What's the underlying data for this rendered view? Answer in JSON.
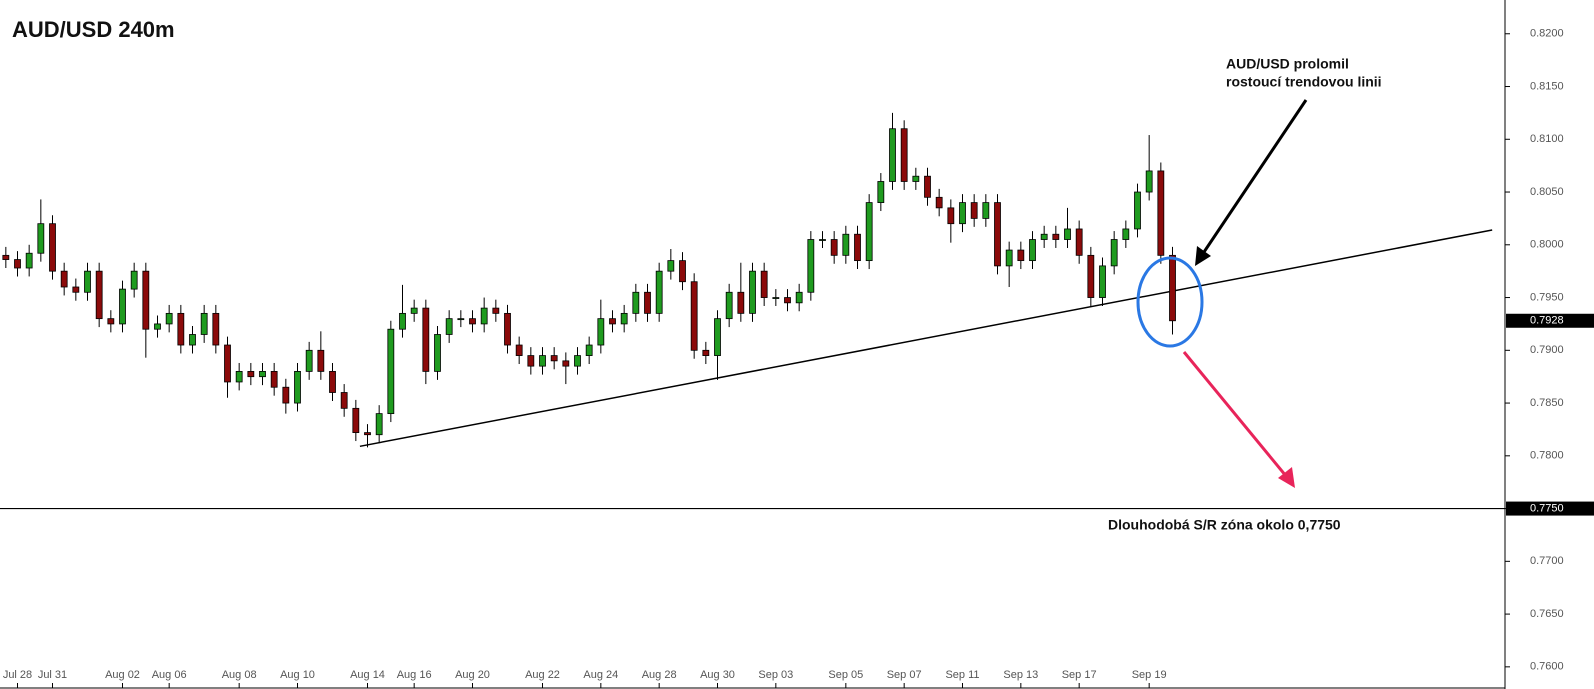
{
  "chart_data": {
    "type": "candlestick",
    "title": "AUD/USD 240m",
    "up_color": "#1f9b1f",
    "down_color": "#8b0a0a",
    "xlim": [
      -0.5,
      128.5
    ],
    "ylim": [
      0.7579,
      0.8232
    ],
    "xticks": [
      {
        "value": 1,
        "label": "Jul 28"
      },
      {
        "value": 4,
        "label": "Jul 31"
      },
      {
        "value": 10,
        "label": "Aug 02"
      },
      {
        "value": 14,
        "label": "Aug 06"
      },
      {
        "value": 20,
        "label": "Aug 08"
      },
      {
        "value": 25,
        "label": "Aug 10"
      },
      {
        "value": 31,
        "label": "Aug 14"
      },
      {
        "value": 35,
        "label": "Aug 16"
      },
      {
        "value": 40,
        "label": "Aug 20"
      },
      {
        "value": 46,
        "label": "Aug 22"
      },
      {
        "value": 51,
        "label": "Aug 24"
      },
      {
        "value": 56,
        "label": "Aug 28"
      },
      {
        "value": 61,
        "label": "Aug 30"
      },
      {
        "value": 66,
        "label": "Sep 03"
      },
      {
        "value": 72,
        "label": "Sep 05"
      },
      {
        "value": 77,
        "label": "Sep 07"
      },
      {
        "value": 82,
        "label": "Sep 11"
      },
      {
        "value": 87,
        "label": "Sep 13"
      },
      {
        "value": 92,
        "label": "Sep 17"
      },
      {
        "value": 98,
        "label": "Sep 19"
      }
    ],
    "yticks": [
      {
        "value": 0.82,
        "label": "0.8200"
      },
      {
        "value": 0.815,
        "label": "0.8150"
      },
      {
        "value": 0.81,
        "label": "0.8100"
      },
      {
        "value": 0.805,
        "label": "0.8050"
      },
      {
        "value": 0.8,
        "label": "0.8000"
      },
      {
        "value": 0.795,
        "label": "0.7950"
      },
      {
        "value": 0.79,
        "label": "0.7900"
      },
      {
        "value": 0.785,
        "label": "0.7850"
      },
      {
        "value": 0.78,
        "label": "0.7800"
      },
      {
        "value": 0.775,
        "label": "0.7750"
      },
      {
        "value": 0.77,
        "label": "0.7700"
      },
      {
        "value": 0.765,
        "label": "0.7650"
      },
      {
        "value": 0.76,
        "label": "0.7600"
      }
    ],
    "open": [
      0.799,
      0.7986,
      0.7978,
      0.7992,
      0.802,
      0.7975,
      0.796,
      0.7955,
      0.7975,
      0.793,
      0.7925,
      0.7958,
      0.7975,
      0.792,
      0.7925,
      0.7935,
      0.7905,
      0.7915,
      0.7935,
      0.7905,
      0.787,
      0.788,
      0.7875,
      0.788,
      0.7865,
      0.785,
      0.788,
      0.79,
      0.788,
      0.786,
      0.7845,
      0.7822,
      0.782,
      0.784,
      0.792,
      0.7935,
      0.794,
      0.788,
      0.7915,
      0.793,
      0.793,
      0.7925,
      0.794,
      0.7935,
      0.7905,
      0.7895,
      0.7885,
      0.7895,
      0.789,
      0.7885,
      0.7895,
      0.7905,
      0.793,
      0.7925,
      0.7935,
      0.7955,
      0.7935,
      0.7975,
      0.7985,
      0.7965,
      0.79,
      0.7895,
      0.793,
      0.7955,
      0.7935,
      0.7975,
      0.795,
      0.795,
      0.7945,
      0.7955,
      0.8005,
      0.8005,
      0.799,
      0.801,
      0.7985,
      0.804,
      0.806,
      0.811,
      0.806,
      0.8065,
      0.8045,
      0.8035,
      0.802,
      0.804,
      0.8025,
      0.804,
      0.798,
      0.7995,
      0.7985,
      0.8005,
      0.801,
      0.8005,
      0.8015,
      0.799,
      0.795,
      0.798,
      0.8005,
      0.8015,
      0.805,
      0.807,
      0.799
    ],
    "high": [
      0.7998,
      0.7994,
      0.8,
      0.8043,
      0.8028,
      0.7983,
      0.7968,
      0.7983,
      0.7983,
      0.7938,
      0.7966,
      0.7983,
      0.7983,
      0.7933,
      0.7943,
      0.7943,
      0.7923,
      0.7943,
      0.7943,
      0.7913,
      0.7888,
      0.7888,
      0.7888,
      0.7888,
      0.7873,
      0.7888,
      0.7908,
      0.7918,
      0.7888,
      0.7868,
      0.7853,
      0.783,
      0.7848,
      0.7928,
      0.7962,
      0.7948,
      0.7948,
      0.7923,
      0.7938,
      0.7938,
      0.7938,
      0.795,
      0.7948,
      0.7943,
      0.7913,
      0.7903,
      0.7903,
      0.7903,
      0.7898,
      0.7903,
      0.7913,
      0.7948,
      0.7938,
      0.7943,
      0.7963,
      0.7963,
      0.7983,
      0.7996,
      0.7993,
      0.7973,
      0.7908,
      0.7938,
      0.7963,
      0.7983,
      0.7983,
      0.7983,
      0.7958,
      0.7958,
      0.7963,
      0.8013,
      0.8013,
      0.8013,
      0.8018,
      0.8018,
      0.8048,
      0.8068,
      0.8125,
      0.8118,
      0.8073,
      0.8073,
      0.8053,
      0.8043,
      0.8048,
      0.8048,
      0.8048,
      0.8048,
      0.8003,
      0.8003,
      0.8013,
      0.8018,
      0.8018,
      0.8035,
      0.8023,
      0.7998,
      0.7988,
      0.8013,
      0.8023,
      0.8058,
      0.8104,
      0.8078,
      0.7998
    ],
    "low": [
      0.7978,
      0.797,
      0.797,
      0.7984,
      0.7967,
      0.7952,
      0.7947,
      0.7947,
      0.7922,
      0.7917,
      0.7917,
      0.795,
      0.7893,
      0.7912,
      0.7917,
      0.7897,
      0.7897,
      0.7907,
      0.7897,
      0.7855,
      0.7862,
      0.7867,
      0.7867,
      0.7857,
      0.784,
      0.7842,
      0.7872,
      0.7872,
      0.7852,
      0.7837,
      0.7814,
      0.7808,
      0.7812,
      0.7832,
      0.7912,
      0.7927,
      0.7868,
      0.7872,
      0.7907,
      0.7922,
      0.7917,
      0.7917,
      0.7927,
      0.7897,
      0.7887,
      0.7877,
      0.7877,
      0.7882,
      0.7868,
      0.7877,
      0.7887,
      0.7897,
      0.7917,
      0.7917,
      0.7927,
      0.7927,
      0.7927,
      0.7967,
      0.7957,
      0.7892,
      0.7887,
      0.7872,
      0.7922,
      0.7927,
      0.7927,
      0.7942,
      0.7942,
      0.7937,
      0.7937,
      0.7947,
      0.7997,
      0.7982,
      0.7982,
      0.7977,
      0.7977,
      0.8032,
      0.8052,
      0.8052,
      0.8052,
      0.8037,
      0.8027,
      0.8002,
      0.8012,
      0.8017,
      0.8017,
      0.7972,
      0.796,
      0.7977,
      0.7977,
      0.7997,
      0.7997,
      0.7997,
      0.7982,
      0.7942,
      0.7942,
      0.7972,
      0.7997,
      0.8007,
      0.8042,
      0.7982,
      0.7915
    ],
    "close": [
      0.7986,
      0.7978,
      0.7992,
      0.802,
      0.7975,
      0.796,
      0.7955,
      0.7975,
      0.793,
      0.7925,
      0.7958,
      0.7975,
      0.792,
      0.7925,
      0.7935,
      0.7905,
      0.7915,
      0.7935,
      0.7905,
      0.787,
      0.788,
      0.7875,
      0.788,
      0.7865,
      0.785,
      0.788,
      0.79,
      0.788,
      0.786,
      0.7845,
      0.7822,
      0.782,
      0.784,
      0.792,
      0.7935,
      0.794,
      0.788,
      0.7915,
      0.793,
      0.793,
      0.7925,
      0.794,
      0.7935,
      0.7905,
      0.7895,
      0.7885,
      0.7895,
      0.789,
      0.7885,
      0.7895,
      0.7905,
      0.793,
      0.7925,
      0.7935,
      0.7955,
      0.7935,
      0.7975,
      0.7985,
      0.7965,
      0.79,
      0.7895,
      0.793,
      0.7955,
      0.7935,
      0.7975,
      0.795,
      0.795,
      0.7945,
      0.7955,
      0.8005,
      0.8005,
      0.799,
      0.801,
      0.7985,
      0.804,
      0.806,
      0.811,
      0.806,
      0.8065,
      0.8045,
      0.8035,
      0.802,
      0.804,
      0.8025,
      0.804,
      0.798,
      0.7995,
      0.7985,
      0.8005,
      0.801,
      0.8005,
      0.8015,
      0.799,
      0.795,
      0.798,
      0.8005,
      0.8015,
      0.805,
      0.807,
      0.799,
      0.7928
    ],
    "trendline": {
      "x": [
        30.35,
        127.4
      ],
      "y": [
        0.7809,
        0.8014
      ]
    },
    "hline": 0.775,
    "price_labels": [
      {
        "value": 0.7928,
        "label": "0.7928"
      },
      {
        "value": 0.775,
        "label": "0.7750"
      }
    ],
    "annotations": [
      {
        "lines": [
          "AUD/USD prolomil",
          "rostoucí trendovou linii"
        ]
      },
      {
        "lines": [
          "Dlouhodobá S/R zóna okolo 0,7750"
        ]
      }
    ]
  }
}
